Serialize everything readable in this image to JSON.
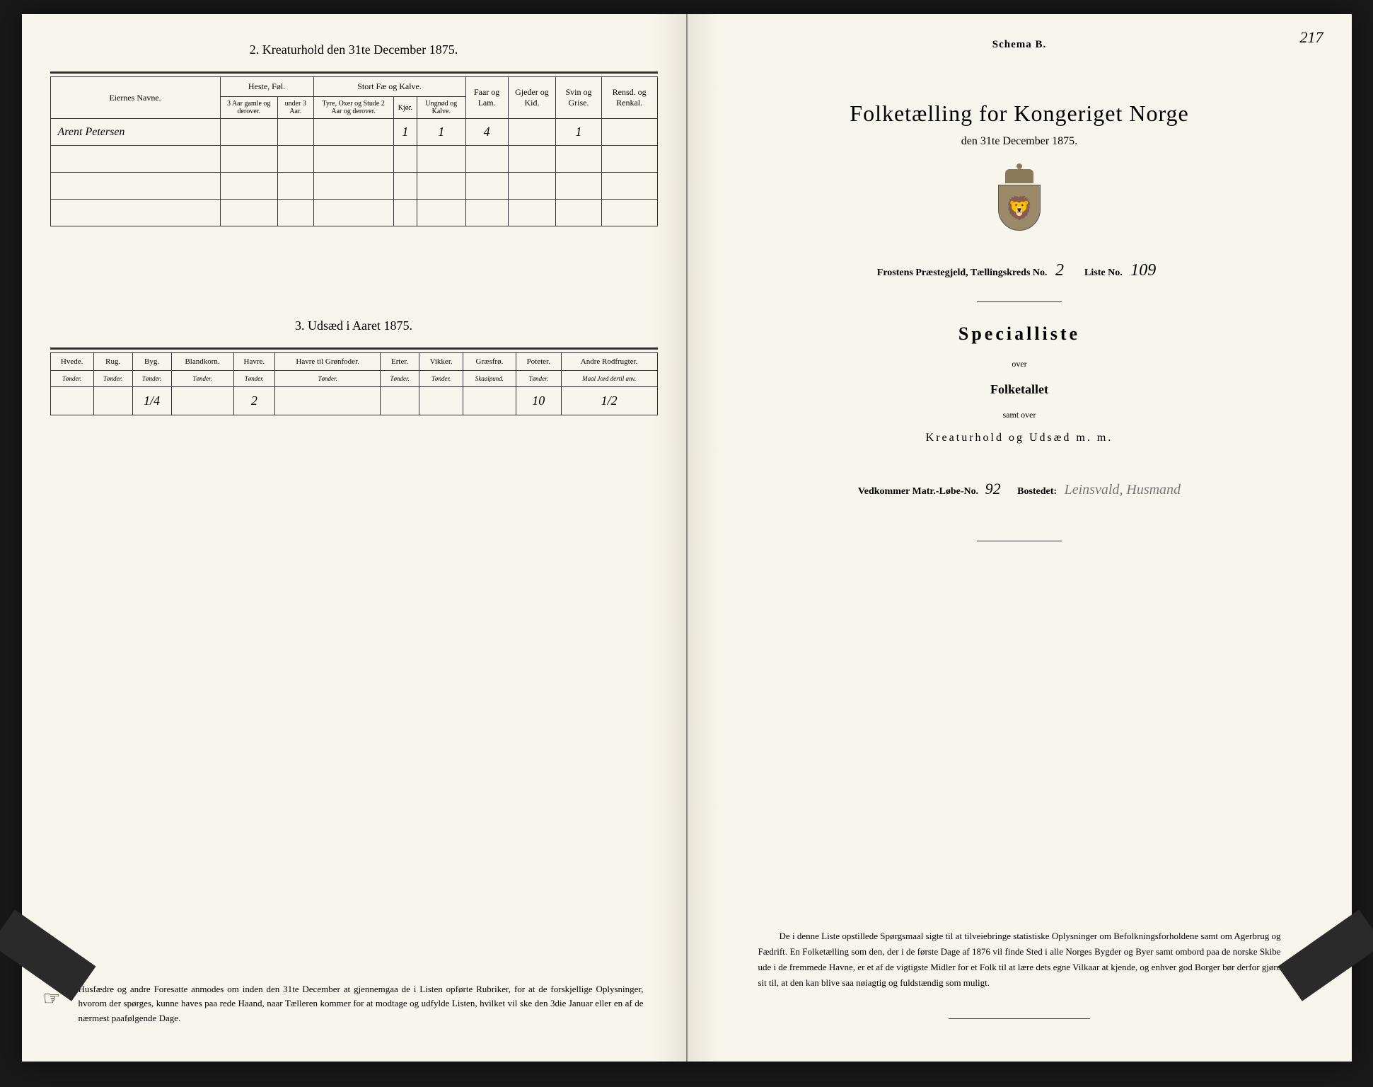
{
  "left": {
    "section2_title": "2. Kreaturhold den 31te December 1875.",
    "livestock": {
      "col_owner": "Eiernes Navne.",
      "groups": [
        {
          "label": "Heste, Føl.",
          "cols": [
            "3 Aar gamle og derover.",
            "under 3 Aar."
          ]
        },
        {
          "label": "Stort Fæ og Kalve.",
          "cols": [
            "Tyre, Oxer og Stude 2 Aar og derover.",
            "Kjør.",
            "Ungnød og Kalve."
          ]
        }
      ],
      "single_cols": [
        "Faar og Lam.",
        "Gjeder og Kid.",
        "Svin og Grise.",
        "Rensd. og Renkal."
      ],
      "rows": [
        {
          "name": "Arent Petersen",
          "vals": [
            "",
            "",
            "",
            "1",
            "1",
            "4",
            "",
            "1",
            ""
          ]
        },
        {
          "name": "",
          "vals": [
            "",
            "",
            "",
            "",
            "",
            "",
            "",
            "",
            ""
          ]
        },
        {
          "name": "",
          "vals": [
            "",
            "",
            "",
            "",
            "",
            "",
            "",
            "",
            ""
          ]
        },
        {
          "name": "",
          "vals": [
            "",
            "",
            "",
            "",
            "",
            "",
            "",
            "",
            ""
          ]
        }
      ]
    },
    "section3_title": "3. Udsæd i Aaret 1875.",
    "sowing": {
      "cols": [
        "Hvede.",
        "Rug.",
        "Byg.",
        "Blandkorn.",
        "Havre.",
        "Havre til Grønfoder.",
        "Erter.",
        "Vikker.",
        "Græsfrø.",
        "Poteter.",
        "Andre Rodfrugter."
      ],
      "subs": [
        "Tønder.",
        "Tønder.",
        "Tønder.",
        "Tønder.",
        "Tønder.",
        "Tønder.",
        "Tønder.",
        "Tønder.",
        "Skaalpund.",
        "Tønder.",
        "Maal Jord dertil anv."
      ],
      "row": [
        "",
        "",
        "1/4",
        "",
        "2",
        "",
        "",
        "",
        "",
        "10",
        "1/2"
      ]
    },
    "footer": "Husfædre og andre Foresatte anmodes om inden den 31te December at gjennemgaa de i Listen opførte Rubriker, for at de forskjellige Oplysninger, hvorom der spørges, kunne haves paa rede Haand, naar Tælleren kommer for at modtage og udfylde Listen, hvilket vil ske den 3die Januar eller en af de nærmest paafølgende Dage."
  },
  "right": {
    "page_num": "217",
    "schema": "Schema B.",
    "title": "Folketælling for Kongeriget Norge",
    "subtitle": "den 31te December 1875.",
    "parish_label": "Frostens Præstegjeld,   Tællingskreds No.",
    "kreds_no": "2",
    "liste_label": "Liste No.",
    "liste_no": "109",
    "special_title": "Specialliste",
    "over": "over",
    "folketallet": "Folketallet",
    "samt": "samt over",
    "kreatur": "Kreaturhold og Udsæd m. m.",
    "vedkommer_label": "Vedkommer Matr.-Løbe-No.",
    "matr_no": "92",
    "bostedet_label": "Bostedet:",
    "bostedet": "Leinsvald, Husmand",
    "footer": "De i denne Liste opstillede Spørgsmaal sigte til at tilveiebringe statistiske Oplysninger om Befolkningsforholdene samt om Agerbrug og Fædrift. En Folketælling som den, der i de første Dage af 1876 vil finde Sted i alle Norges Bygder og Byer samt ombord paa de norske Skibe ude i de fremmede Havne, er et af de vigtigste Midler for et Folk til at lære dets egne Vilkaar at kjende, og enhver god Borger bør derfor gjøre sit til, at den kan blive saa nøiagtig og fuldstændig som muligt."
  },
  "colors": {
    "paper": "#f8f5ec",
    "ink": "#333333",
    "clip": "#2a2a2a"
  }
}
